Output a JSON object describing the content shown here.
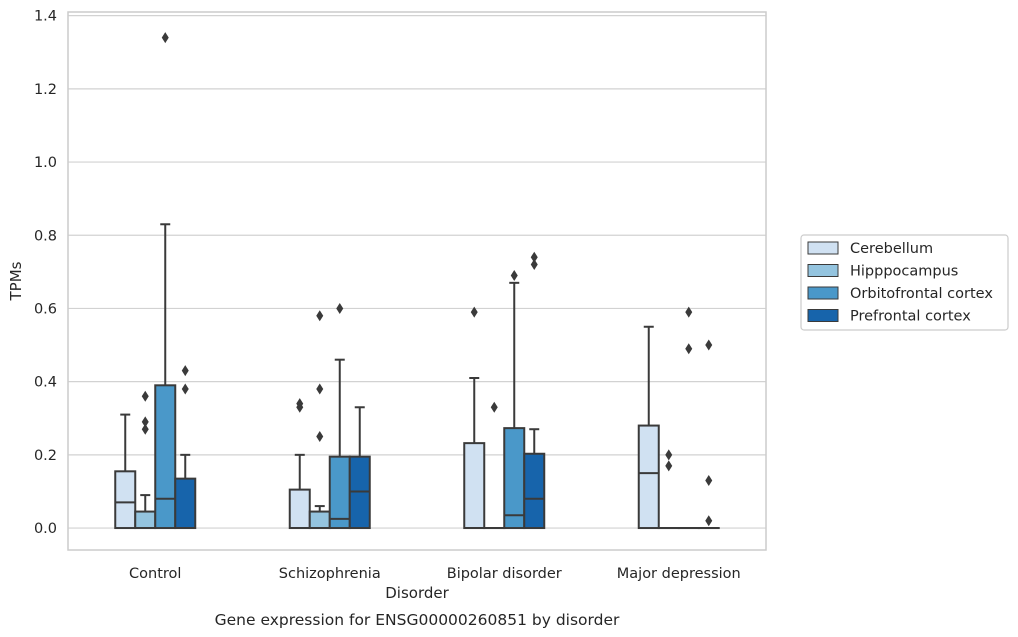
{
  "chart_data": {
    "type": "box",
    "xlabel": "Disorder",
    "ylabel": "TPMs",
    "caption": "Gene expression for ENSG00000260851 by disorder",
    "ylim": [
      -0.06,
      1.41
    ],
    "yticks": [
      0.0,
      0.2,
      0.4,
      0.6,
      0.8,
      1.0,
      1.2,
      1.4
    ],
    "yticklabels": [
      "0.0",
      "0.2",
      "0.4",
      "0.6",
      "0.8",
      "1.0",
      "1.2",
      "1.4"
    ],
    "grid": true,
    "legend_position": "right",
    "categories": [
      "Control",
      "Schizophrenia",
      "Bipolar disorder",
      "Major depression"
    ],
    "series": [
      {
        "name": "Cerebellum",
        "color": "#d0e1f2",
        "boxes": [
          {
            "whislo": 0.0,
            "q1": 0.0,
            "med": 0.07,
            "q3": 0.155,
            "whishi": 0.31,
            "fliers": []
          },
          {
            "whislo": 0.0,
            "q1": 0.0,
            "med": 0.0,
            "q3": 0.105,
            "whishi": 0.2,
            "fliers": [
              0.33,
              0.34
            ]
          },
          {
            "whislo": 0.0,
            "q1": 0.0,
            "med": 0.0,
            "q3": 0.232,
            "whishi": 0.41,
            "fliers": [
              0.59
            ]
          },
          {
            "whislo": 0.0,
            "q1": 0.0,
            "med": 0.15,
            "q3": 0.28,
            "whishi": 0.55,
            "fliers": []
          }
        ]
      },
      {
        "name": "Hipppocampus",
        "color": "#94c4df",
        "boxes": [
          {
            "whislo": 0.0,
            "q1": 0.0,
            "med": 0.0,
            "q3": 0.045,
            "whishi": 0.09,
            "fliers": [
              0.27,
              0.29,
              0.36
            ]
          },
          {
            "whislo": 0.0,
            "q1": 0.0,
            "med": 0.0,
            "q3": 0.045,
            "whishi": 0.06,
            "fliers": [
              0.25,
              0.38,
              0.58
            ]
          },
          {
            "whislo": 0.0,
            "q1": 0.0,
            "med": 0.0,
            "q3": 0.0,
            "whishi": 0.0,
            "fliers": [
              0.33
            ]
          },
          {
            "whislo": 0.0,
            "q1": 0.0,
            "med": 0.0,
            "q3": 0.0,
            "whishi": 0.0,
            "fliers": [
              0.17,
              0.2
            ]
          }
        ]
      },
      {
        "name": "Orbitofrontal cortex",
        "color": "#4a98c9",
        "boxes": [
          {
            "whislo": 0.0,
            "q1": 0.0,
            "med": 0.08,
            "q3": 0.39,
            "whishi": 0.83,
            "fliers": [
              1.34
            ]
          },
          {
            "whislo": 0.0,
            "q1": 0.0,
            "med": 0.025,
            "q3": 0.195,
            "whishi": 0.46,
            "fliers": [
              0.6
            ]
          },
          {
            "whislo": 0.0,
            "q1": 0.0,
            "med": 0.035,
            "q3": 0.273,
            "whishi": 0.67,
            "fliers": [
              0.69
            ]
          },
          {
            "whislo": 0.0,
            "q1": 0.0,
            "med": 0.0,
            "q3": 0.0,
            "whishi": 0.0,
            "fliers": [
              0.49,
              0.59
            ]
          }
        ]
      },
      {
        "name": "Prefrontal cortex",
        "color": "#1764ab",
        "boxes": [
          {
            "whislo": 0.0,
            "q1": 0.0,
            "med": 0.0,
            "q3": 0.135,
            "whishi": 0.2,
            "fliers": [
              0.38,
              0.43
            ]
          },
          {
            "whislo": 0.0,
            "q1": 0.0,
            "med": 0.1,
            "q3": 0.195,
            "whishi": 0.33,
            "fliers": []
          },
          {
            "whislo": 0.0,
            "q1": 0.0,
            "med": 0.08,
            "q3": 0.203,
            "whishi": 0.27,
            "fliers": [
              0.72,
              0.74
            ]
          },
          {
            "whislo": 0.0,
            "q1": 0.0,
            "med": 0.0,
            "q3": 0.0,
            "whishi": 0.0,
            "fliers": [
              0.02,
              0.13,
              0.5
            ]
          }
        ]
      }
    ]
  }
}
